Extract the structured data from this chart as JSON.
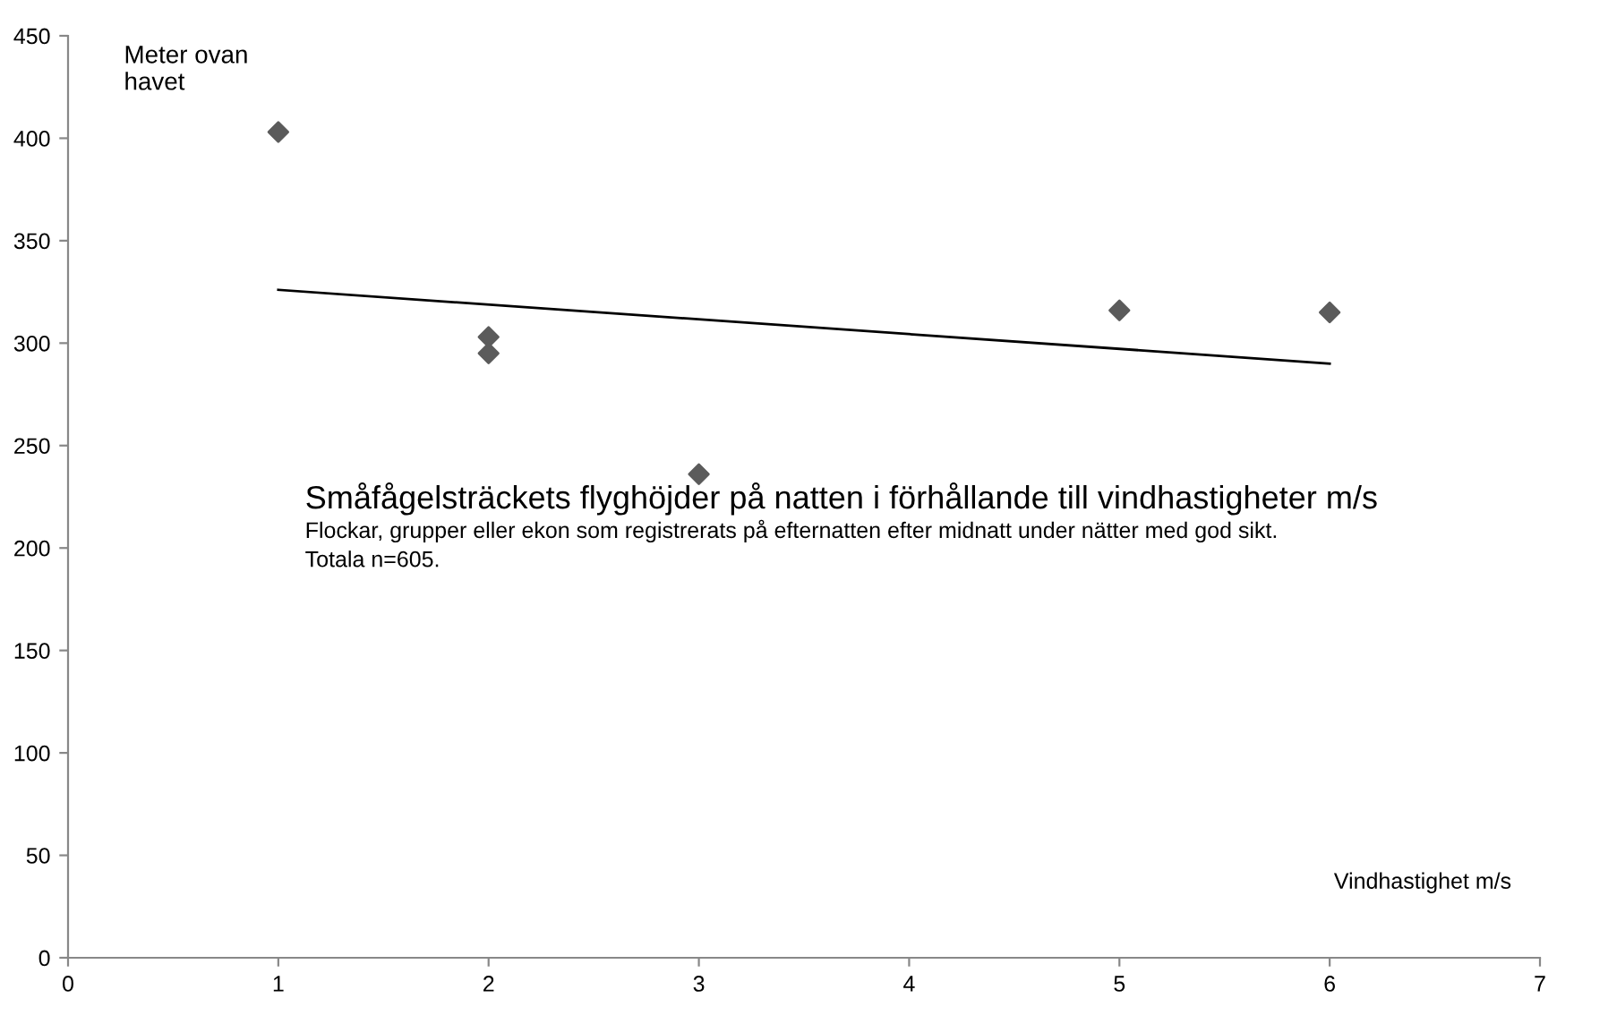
{
  "chart_data": {
    "type": "scatter",
    "title": "Småfågelsträckets flyghöjder på natten i förhållande till vindhastigheter m/s",
    "subtitle": "Flockar, grupper eller ekon som registrerats på efternatten efter midnatt under nätter med god sikt.\nTotala n=605.",
    "xlabel": "Vindhastighet m/s",
    "ylabel": "Meter ovan\nhavet",
    "series": [
      {
        "color": "#5b5b5b",
        "marker": "diamond",
        "x": [
          1,
          2,
          2,
          3,
          5,
          6
        ],
        "values": [
          403,
          303,
          295,
          236,
          316,
          315
        ]
      },
      {
        "type": "line",
        "color": "#000000",
        "x": [
          1,
          6
        ],
        "values": [
          326,
          290
        ]
      }
    ],
    "xlim": [
      0,
      7
    ],
    "xticks": [
      0,
      1,
      2,
      3,
      4,
      5,
      6,
      7
    ],
    "ylim": [
      0,
      450
    ],
    "yticks": [
      0,
      50,
      100,
      150,
      200,
      250,
      300,
      350,
      400,
      450
    ],
    "grid": false,
    "legend": false
  }
}
